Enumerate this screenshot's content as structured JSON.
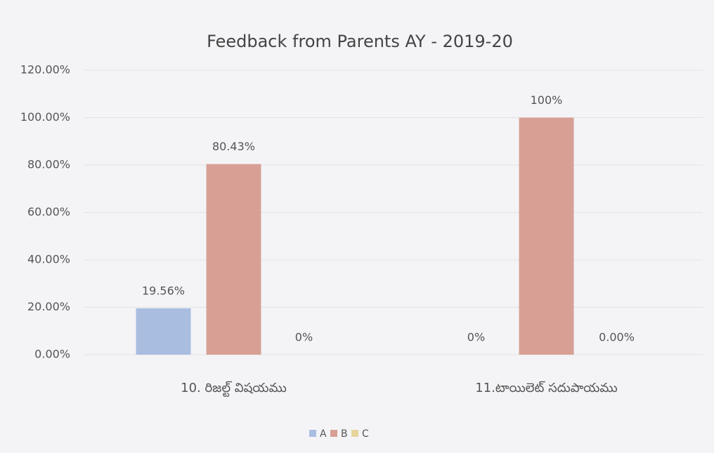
{
  "chart_data": {
    "type": "bar",
    "title": "Feedback from Parents AY - 2019-20",
    "categories": [
      "10. రిజల్ట్ విషయము",
      "11.టాయిలెట్ సదుపాయము"
    ],
    "series": [
      {
        "name": "A",
        "color": "#a9bde0",
        "values": [
          19.56,
          0
        ],
        "value_labels": [
          "19.56%",
          "0%"
        ]
      },
      {
        "name": "B",
        "color": "#d8a095",
        "values": [
          80.43,
          100
        ],
        "value_labels": [
          "80.43%",
          "100%"
        ]
      },
      {
        "name": "C",
        "color": "#e6d49a",
        "values": [
          0,
          0
        ],
        "value_labels": [
          "0%",
          "0.00%"
        ]
      }
    ],
    "ylim": [
      0,
      120
    ],
    "yticks": [
      {
        "value": 0,
        "label": "0.00%"
      },
      {
        "value": 20,
        "label": "20.00%"
      },
      {
        "value": 40,
        "label": "40.00%"
      },
      {
        "value": 60,
        "label": "60.00%"
      },
      {
        "value": 80,
        "label": "80.00%"
      },
      {
        "value": 100,
        "label": "100.00%"
      },
      {
        "value": 120,
        "label": "120.00%"
      }
    ],
    "grid": true,
    "legend": "bottom"
  }
}
